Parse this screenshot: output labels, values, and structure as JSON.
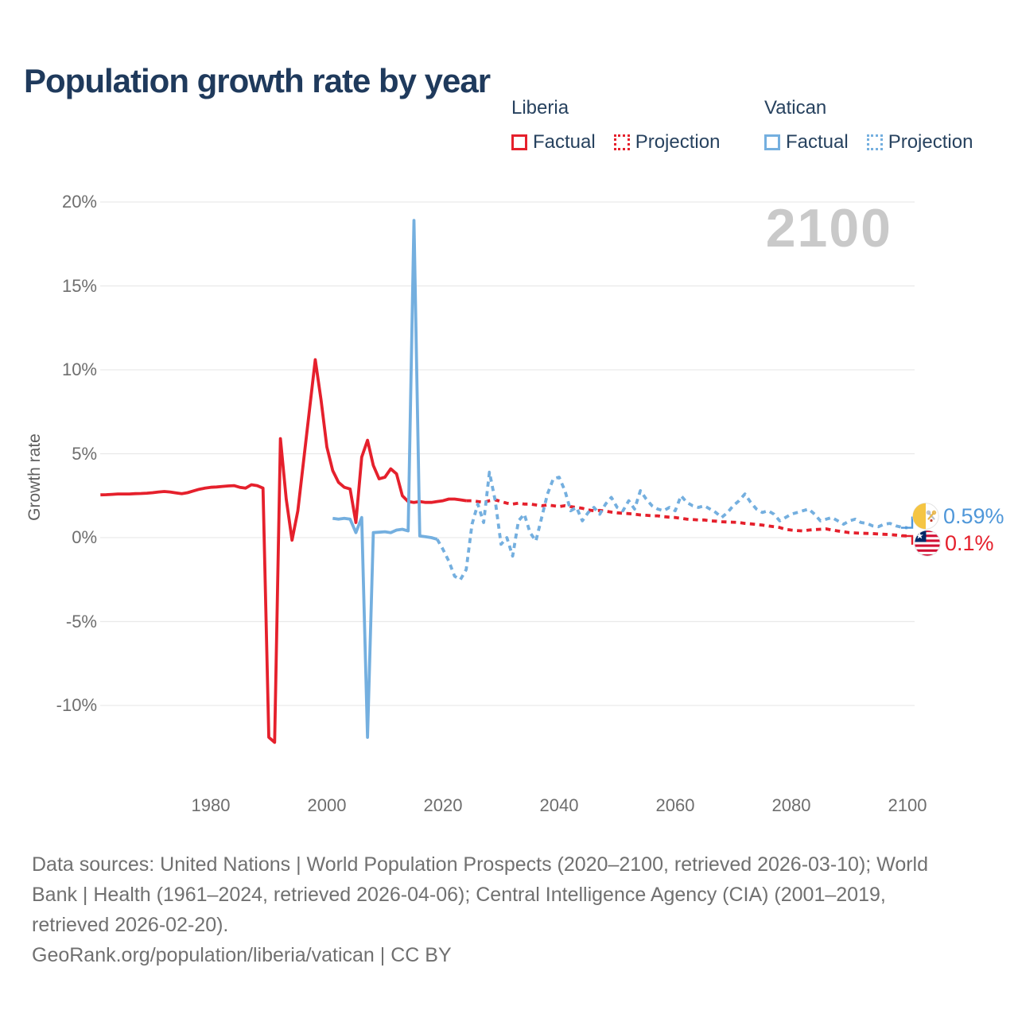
{
  "title": "Population growth rate by year",
  "watermark": "2100",
  "legend": {
    "groups": [
      {
        "name": "Liberia",
        "color": "#e5202c",
        "items": [
          {
            "label": "Factual",
            "style": "solid"
          },
          {
            "label": "Projection",
            "style": "dotted"
          }
        ]
      },
      {
        "name": "Vatican",
        "color": "#74afdf",
        "items": [
          {
            "label": "Factual",
            "style": "solid"
          },
          {
            "label": "Projection",
            "style": "dotted"
          }
        ]
      }
    ]
  },
  "axis": {
    "ylabel": "Growth rate",
    "yticks": [
      {
        "value": 20,
        "label": "20%"
      },
      {
        "value": 15,
        "label": "15%"
      },
      {
        "value": 10,
        "label": "10%"
      },
      {
        "value": 5,
        "label": "5%"
      },
      {
        "value": 0,
        "label": "0%"
      },
      {
        "value": -5,
        "label": "-5%"
      },
      {
        "value": -10,
        "label": "-10%"
      }
    ],
    "xticks": [
      {
        "value": 1980,
        "label": "1980"
      },
      {
        "value": 2000,
        "label": "2000"
      },
      {
        "value": 2020,
        "label": "2020"
      },
      {
        "value": 2040,
        "label": "2040"
      },
      {
        "value": 2060,
        "label": "2060"
      },
      {
        "value": 2080,
        "label": "2080"
      },
      {
        "value": 2100,
        "label": "2100"
      }
    ]
  },
  "end_labels": [
    {
      "country": "Vatican",
      "value": "0.59%",
      "value_numeric": 0.59,
      "color": "#4f97d9",
      "elbow": "up"
    },
    {
      "country": "Liberia",
      "value": "0.1%",
      "value_numeric": 0.1,
      "color": "#e5202c",
      "elbow": "down"
    }
  ],
  "footer": {
    "lines": [
      "Data sources: United Nations | World Population Prospects (2020–2100, retrieved 2026-03-10); World",
      "Bank | Health (1961–2024, retrieved 2026-04-06); Central Intelligence Agency (CIA) (2001–2019,",
      "retrieved 2026-02-20).",
      "GeoRank.org/population/liberia/vatican | CC BY"
    ]
  },
  "colors": {
    "liberia_line": "#e5202c",
    "vatican_line": "#74afdf",
    "title_text": "#1f3a5c",
    "axis_text": "#6e6e6e",
    "gridline": "#e9e9e9",
    "watermark": "#c9c9c9"
  },
  "chart_data": {
    "type": "line",
    "title": "Population growth rate by year",
    "xlabel": "Year",
    "ylabel": "Growth rate",
    "x_range": [
      1961,
      2100
    ],
    "y_range": [
      -12.5,
      20
    ],
    "grid": true,
    "legend_position": "top",
    "units": "percent",
    "series": [
      {
        "name": "Liberia Factual",
        "country": "Liberia",
        "kind": "factual",
        "style": "solid",
        "color": "#e5202c",
        "points": [
          [
            1961,
            2.55
          ],
          [
            1962,
            2.56
          ],
          [
            1963,
            2.58
          ],
          [
            1964,
            2.6
          ],
          [
            1965,
            2.6
          ],
          [
            1966,
            2.6
          ],
          [
            1967,
            2.62
          ],
          [
            1968,
            2.63
          ],
          [
            1969,
            2.65
          ],
          [
            1970,
            2.68
          ],
          [
            1971,
            2.72
          ],
          [
            1972,
            2.75
          ],
          [
            1973,
            2.72
          ],
          [
            1974,
            2.67
          ],
          [
            1975,
            2.62
          ],
          [
            1976,
            2.68
          ],
          [
            1977,
            2.78
          ],
          [
            1978,
            2.88
          ],
          [
            1979,
            2.95
          ],
          [
            1980,
            3.0
          ],
          [
            1981,
            3.02
          ],
          [
            1982,
            3.05
          ],
          [
            1983,
            3.08
          ],
          [
            1984,
            3.1
          ],
          [
            1985,
            3.0
          ],
          [
            1986,
            2.95
          ],
          [
            1987,
            3.15
          ],
          [
            1988,
            3.1
          ],
          [
            1989,
            2.95
          ],
          [
            1990,
            -11.9
          ],
          [
            1991,
            -12.2
          ],
          [
            1992,
            5.9
          ],
          [
            1993,
            2.3
          ],
          [
            1994,
            -0.15
          ],
          [
            1995,
            1.6
          ],
          [
            1996,
            4.6
          ],
          [
            1997,
            7.6
          ],
          [
            1998,
            10.6
          ],
          [
            1999,
            8.2
          ],
          [
            2000,
            5.4
          ],
          [
            2001,
            4.0
          ],
          [
            2002,
            3.3
          ],
          [
            2003,
            3.0
          ],
          [
            2004,
            2.9
          ],
          [
            2005,
            0.9
          ],
          [
            2006,
            4.8
          ],
          [
            2007,
            5.8
          ],
          [
            2008,
            4.3
          ],
          [
            2009,
            3.5
          ],
          [
            2010,
            3.6
          ],
          [
            2011,
            4.1
          ],
          [
            2012,
            3.8
          ],
          [
            2013,
            2.5
          ],
          [
            2014,
            2.15
          ],
          [
            2015,
            2.1
          ],
          [
            2016,
            2.15
          ],
          [
            2017,
            2.1
          ],
          [
            2018,
            2.1
          ],
          [
            2019,
            2.15
          ],
          [
            2020,
            2.2
          ],
          [
            2021,
            2.3
          ],
          [
            2022,
            2.3
          ],
          [
            2023,
            2.25
          ],
          [
            2024,
            2.2
          ]
        ]
      },
      {
        "name": "Liberia Projection",
        "country": "Liberia",
        "kind": "projection",
        "style": "dashed",
        "color": "#e5202c",
        "points": [
          [
            2024,
            2.2
          ],
          [
            2025,
            2.2
          ],
          [
            2026,
            2.15
          ],
          [
            2027,
            2.1
          ],
          [
            2028,
            2.2
          ],
          [
            2029,
            2.25
          ],
          [
            2030,
            2.15
          ],
          [
            2031,
            2.05
          ],
          [
            2032,
            2.0
          ],
          [
            2033,
            2.05
          ],
          [
            2034,
            2.0
          ],
          [
            2035,
            2.0
          ],
          [
            2036,
            1.95
          ],
          [
            2037,
            1.9
          ],
          [
            2038,
            1.95
          ],
          [
            2039,
            1.9
          ],
          [
            2040,
            1.85
          ],
          [
            2041,
            1.9
          ],
          [
            2042,
            1.85
          ],
          [
            2043,
            1.8
          ],
          [
            2044,
            1.75
          ],
          [
            2045,
            1.65
          ],
          [
            2046,
            1.6
          ],
          [
            2047,
            1.62
          ],
          [
            2048,
            1.58
          ],
          [
            2049,
            1.52
          ],
          [
            2050,
            1.48
          ],
          [
            2051,
            1.45
          ],
          [
            2052,
            1.43
          ],
          [
            2053,
            1.4
          ],
          [
            2054,
            1.35
          ],
          [
            2055,
            1.33
          ],
          [
            2056,
            1.3
          ],
          [
            2057,
            1.3
          ],
          [
            2058,
            1.25
          ],
          [
            2059,
            1.22
          ],
          [
            2060,
            1.2
          ],
          [
            2061,
            1.15
          ],
          [
            2062,
            1.1
          ],
          [
            2063,
            1.08
          ],
          [
            2064,
            1.05
          ],
          [
            2065,
            1.05
          ],
          [
            2066,
            1.0
          ],
          [
            2067,
            0.98
          ],
          [
            2068,
            0.95
          ],
          [
            2069,
            0.93
          ],
          [
            2070,
            0.92
          ],
          [
            2071,
            0.9
          ],
          [
            2072,
            0.85
          ],
          [
            2073,
            0.82
          ],
          [
            2074,
            0.78
          ],
          [
            2075,
            0.75
          ],
          [
            2076,
            0.7
          ],
          [
            2077,
            0.65
          ],
          [
            2078,
            0.6
          ],
          [
            2079,
            0.5
          ],
          [
            2080,
            0.45
          ],
          [
            2081,
            0.42
          ],
          [
            2082,
            0.4
          ],
          [
            2083,
            0.45
          ],
          [
            2084,
            0.48
          ],
          [
            2085,
            0.5
          ],
          [
            2086,
            0.52
          ],
          [
            2087,
            0.45
          ],
          [
            2088,
            0.4
          ],
          [
            2089,
            0.35
          ],
          [
            2090,
            0.3
          ],
          [
            2091,
            0.28
          ],
          [
            2092,
            0.26
          ],
          [
            2093,
            0.25
          ],
          [
            2094,
            0.24
          ],
          [
            2095,
            0.22
          ],
          [
            2096,
            0.2
          ],
          [
            2097,
            0.18
          ],
          [
            2098,
            0.15
          ],
          [
            2099,
            0.12
          ],
          [
            2100,
            0.1
          ]
        ]
      },
      {
        "name": "Vatican Factual",
        "country": "Vatican",
        "kind": "factual",
        "style": "solid",
        "color": "#74afdf",
        "points": [
          [
            2001,
            1.15
          ],
          [
            2002,
            1.1
          ],
          [
            2003,
            1.15
          ],
          [
            2004,
            1.1
          ],
          [
            2005,
            0.3
          ],
          [
            2006,
            1.2
          ],
          [
            2007,
            -11.9
          ],
          [
            2008,
            0.3
          ],
          [
            2009,
            0.32
          ],
          [
            2010,
            0.35
          ],
          [
            2011,
            0.3
          ],
          [
            2012,
            0.45
          ],
          [
            2013,
            0.5
          ],
          [
            2014,
            0.4
          ],
          [
            2015,
            18.9
          ],
          [
            2016,
            0.1
          ],
          [
            2017,
            0.05
          ],
          [
            2018,
            0.0
          ],
          [
            2019,
            -0.1
          ]
        ]
      },
      {
        "name": "Vatican Projection",
        "country": "Vatican",
        "kind": "projection",
        "style": "dashed",
        "color": "#74afdf",
        "points": [
          [
            2019,
            -0.1
          ],
          [
            2020,
            -0.7
          ],
          [
            2021,
            -1.4
          ],
          [
            2022,
            -2.3
          ],
          [
            2023,
            -2.5
          ],
          [
            2024,
            -1.9
          ],
          [
            2025,
            0.8
          ],
          [
            2026,
            2.0
          ],
          [
            2027,
            0.9
          ],
          [
            2028,
            3.9
          ],
          [
            2029,
            2.2
          ],
          [
            2030,
            -0.4
          ],
          [
            2031,
            0.0
          ],
          [
            2032,
            -1.1
          ],
          [
            2033,
            1.0
          ],
          [
            2034,
            1.4
          ],
          [
            2035,
            0.3
          ],
          [
            2036,
            -0.2
          ],
          [
            2037,
            1.2
          ],
          [
            2038,
            2.6
          ],
          [
            2039,
            3.5
          ],
          [
            2040,
            3.6
          ],
          [
            2041,
            2.8
          ],
          [
            2042,
            1.6
          ],
          [
            2043,
            1.8
          ],
          [
            2044,
            1.0
          ],
          [
            2045,
            1.5
          ],
          [
            2046,
            1.8
          ],
          [
            2047,
            1.4
          ],
          [
            2048,
            2.0
          ],
          [
            2049,
            2.4
          ],
          [
            2050,
            1.8
          ],
          [
            2051,
            1.6
          ],
          [
            2052,
            2.2
          ],
          [
            2053,
            1.7
          ],
          [
            2054,
            2.8
          ],
          [
            2055,
            2.3
          ],
          [
            2056,
            1.9
          ],
          [
            2057,
            1.7
          ],
          [
            2058,
            1.6
          ],
          [
            2059,
            1.8
          ],
          [
            2060,
            1.6
          ],
          [
            2061,
            2.5
          ],
          [
            2062,
            2.1
          ],
          [
            2063,
            1.9
          ],
          [
            2064,
            1.8
          ],
          [
            2065,
            1.9
          ],
          [
            2066,
            1.7
          ],
          [
            2067,
            1.5
          ],
          [
            2068,
            1.2
          ],
          [
            2069,
            1.5
          ],
          [
            2070,
            1.9
          ],
          [
            2071,
            2.2
          ],
          [
            2072,
            2.6
          ],
          [
            2073,
            2.1
          ],
          [
            2074,
            1.7
          ],
          [
            2075,
            1.5
          ],
          [
            2076,
            1.6
          ],
          [
            2077,
            1.4
          ],
          [
            2078,
            1.0
          ],
          [
            2079,
            1.2
          ],
          [
            2080,
            1.4
          ],
          [
            2081,
            1.5
          ],
          [
            2082,
            1.6
          ],
          [
            2083,
            1.7
          ],
          [
            2084,
            1.4
          ],
          [
            2085,
            1.0
          ],
          [
            2086,
            1.1
          ],
          [
            2087,
            1.2
          ],
          [
            2088,
            1.0
          ],
          [
            2089,
            0.8
          ],
          [
            2090,
            1.0
          ],
          [
            2091,
            1.1
          ],
          [
            2092,
            0.9
          ],
          [
            2093,
            0.85
          ],
          [
            2094,
            0.7
          ],
          [
            2095,
            0.65
          ],
          [
            2096,
            0.8
          ],
          [
            2097,
            0.85
          ],
          [
            2098,
            0.7
          ],
          [
            2099,
            0.62
          ],
          [
            2100,
            0.59
          ]
        ]
      }
    ]
  }
}
